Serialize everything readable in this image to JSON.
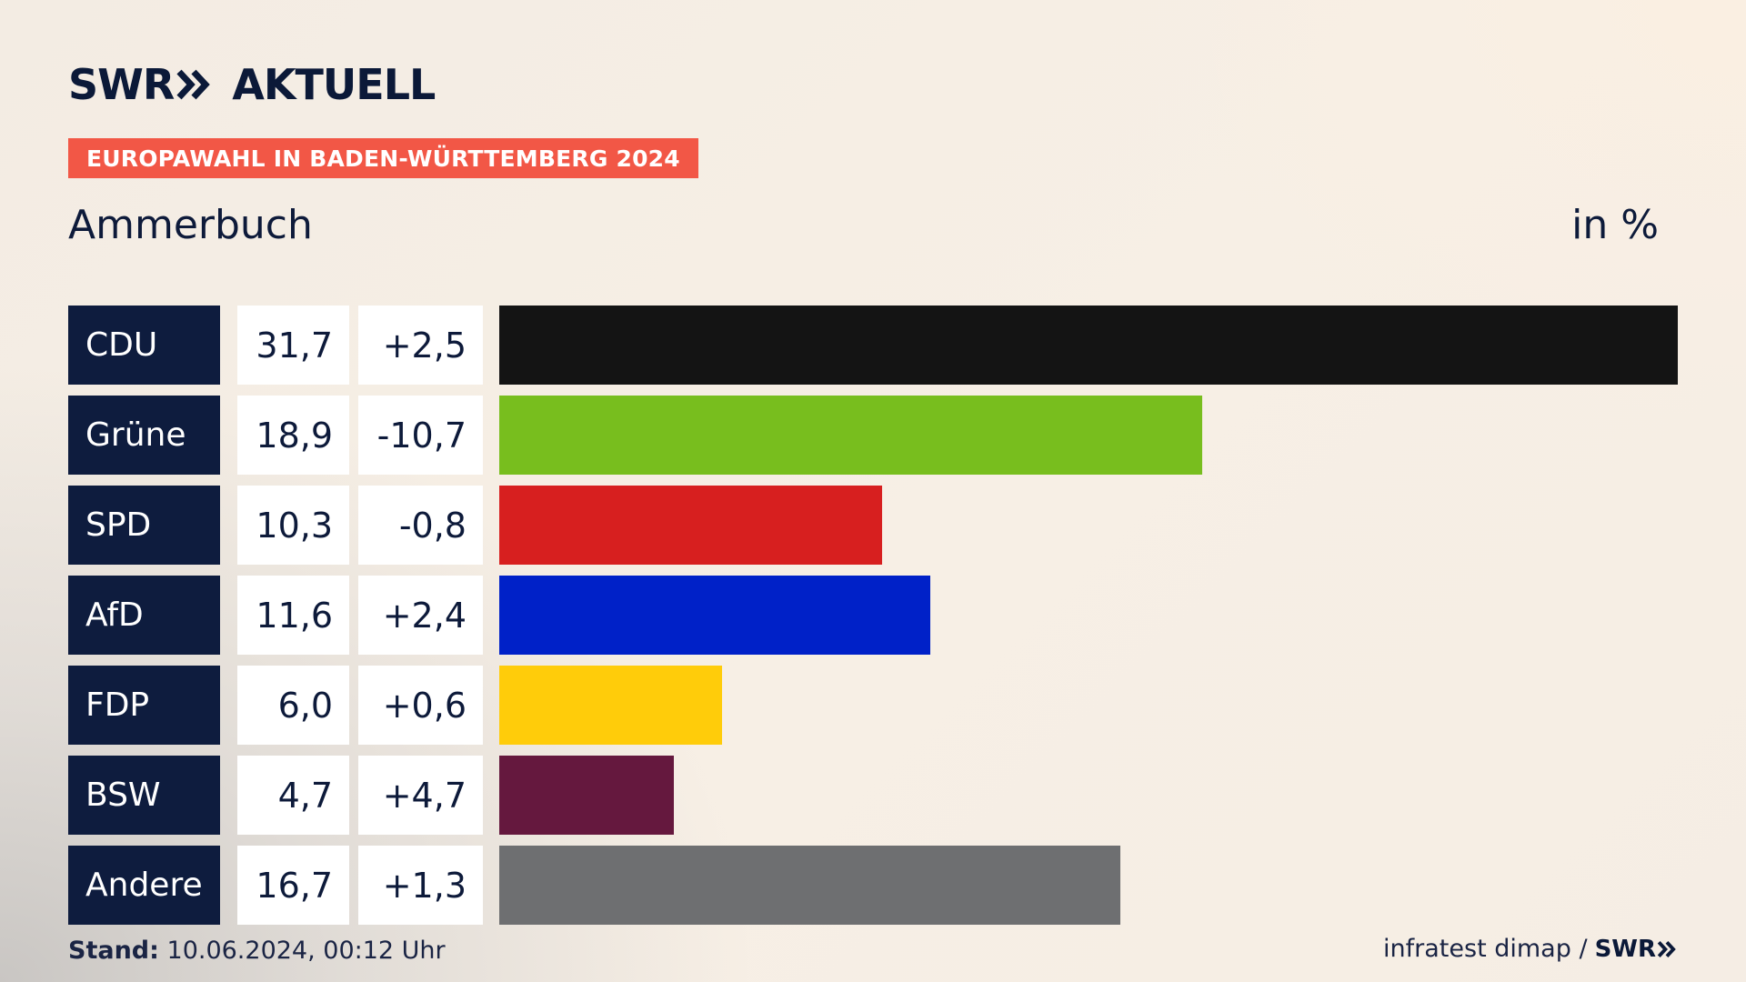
{
  "brand": {
    "name": "SWR",
    "product": "AKTUELL"
  },
  "badge": "EUROPAWAHL IN BADEN-WÜRTTEMBERG 2024",
  "region": "Ammerbuch",
  "unit": "in %",
  "colors": {
    "CDU": "#141414",
    "Grüne": "#78be1e",
    "SPD": "#d71f1f",
    "AfD": "#0021c8",
    "FDP": "#ffcc0a",
    "BSW": "#65183e",
    "Andere": "#6e6f71"
  },
  "chart_data": {
    "type": "bar",
    "orientation": "horizontal",
    "categories": [
      "CDU",
      "Grüne",
      "SPD",
      "AfD",
      "FDP",
      "BSW",
      "Andere"
    ],
    "values": [
      31.7,
      18.9,
      10.3,
      11.6,
      6.0,
      4.7,
      16.7
    ],
    "value_labels": [
      "31,7",
      "18,9",
      "10,3",
      "11,6",
      "6,0",
      "4,7",
      "16,7"
    ],
    "change_labels": [
      "+2,5",
      "-10,7",
      "-0,8",
      "+2,4",
      "+0,6",
      "+4,7",
      "+1,3"
    ],
    "title": "Ammerbuch",
    "unit": "in %",
    "xlim": [
      0,
      31.7
    ]
  },
  "footer": {
    "stand_label": "Stand:",
    "stand_value": "10.06.2024, 00:12 Uhr",
    "source": "infratest dimap /",
    "source_brand": "SWR"
  }
}
